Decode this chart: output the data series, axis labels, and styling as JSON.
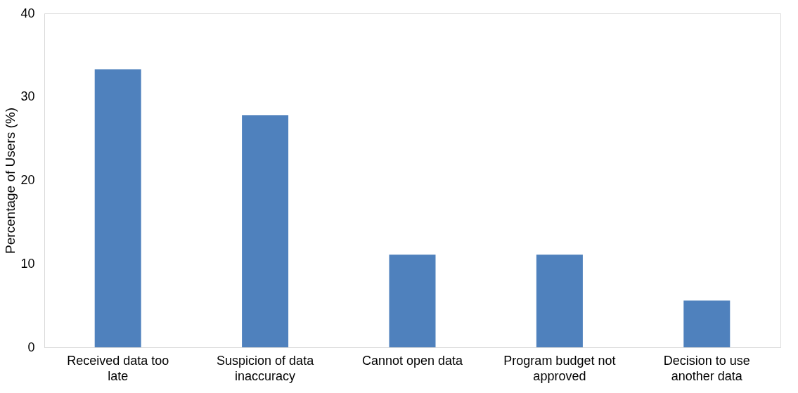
{
  "chart_data": {
    "type": "bar",
    "ylabel": "Percentage of Users (%)",
    "categories": [
      "Received data too late",
      "Suspicion of data inaccuracy",
      "Cannot open data",
      "Program budget not approved",
      "Decision to use another data"
    ],
    "values": [
      33.3,
      27.8,
      11.1,
      11.1,
      5.6
    ],
    "color": "#4f81bd",
    "ylim": [
      0,
      40
    ],
    "yticks": [
      0,
      10,
      20,
      30,
      40
    ],
    "grid": false
  }
}
